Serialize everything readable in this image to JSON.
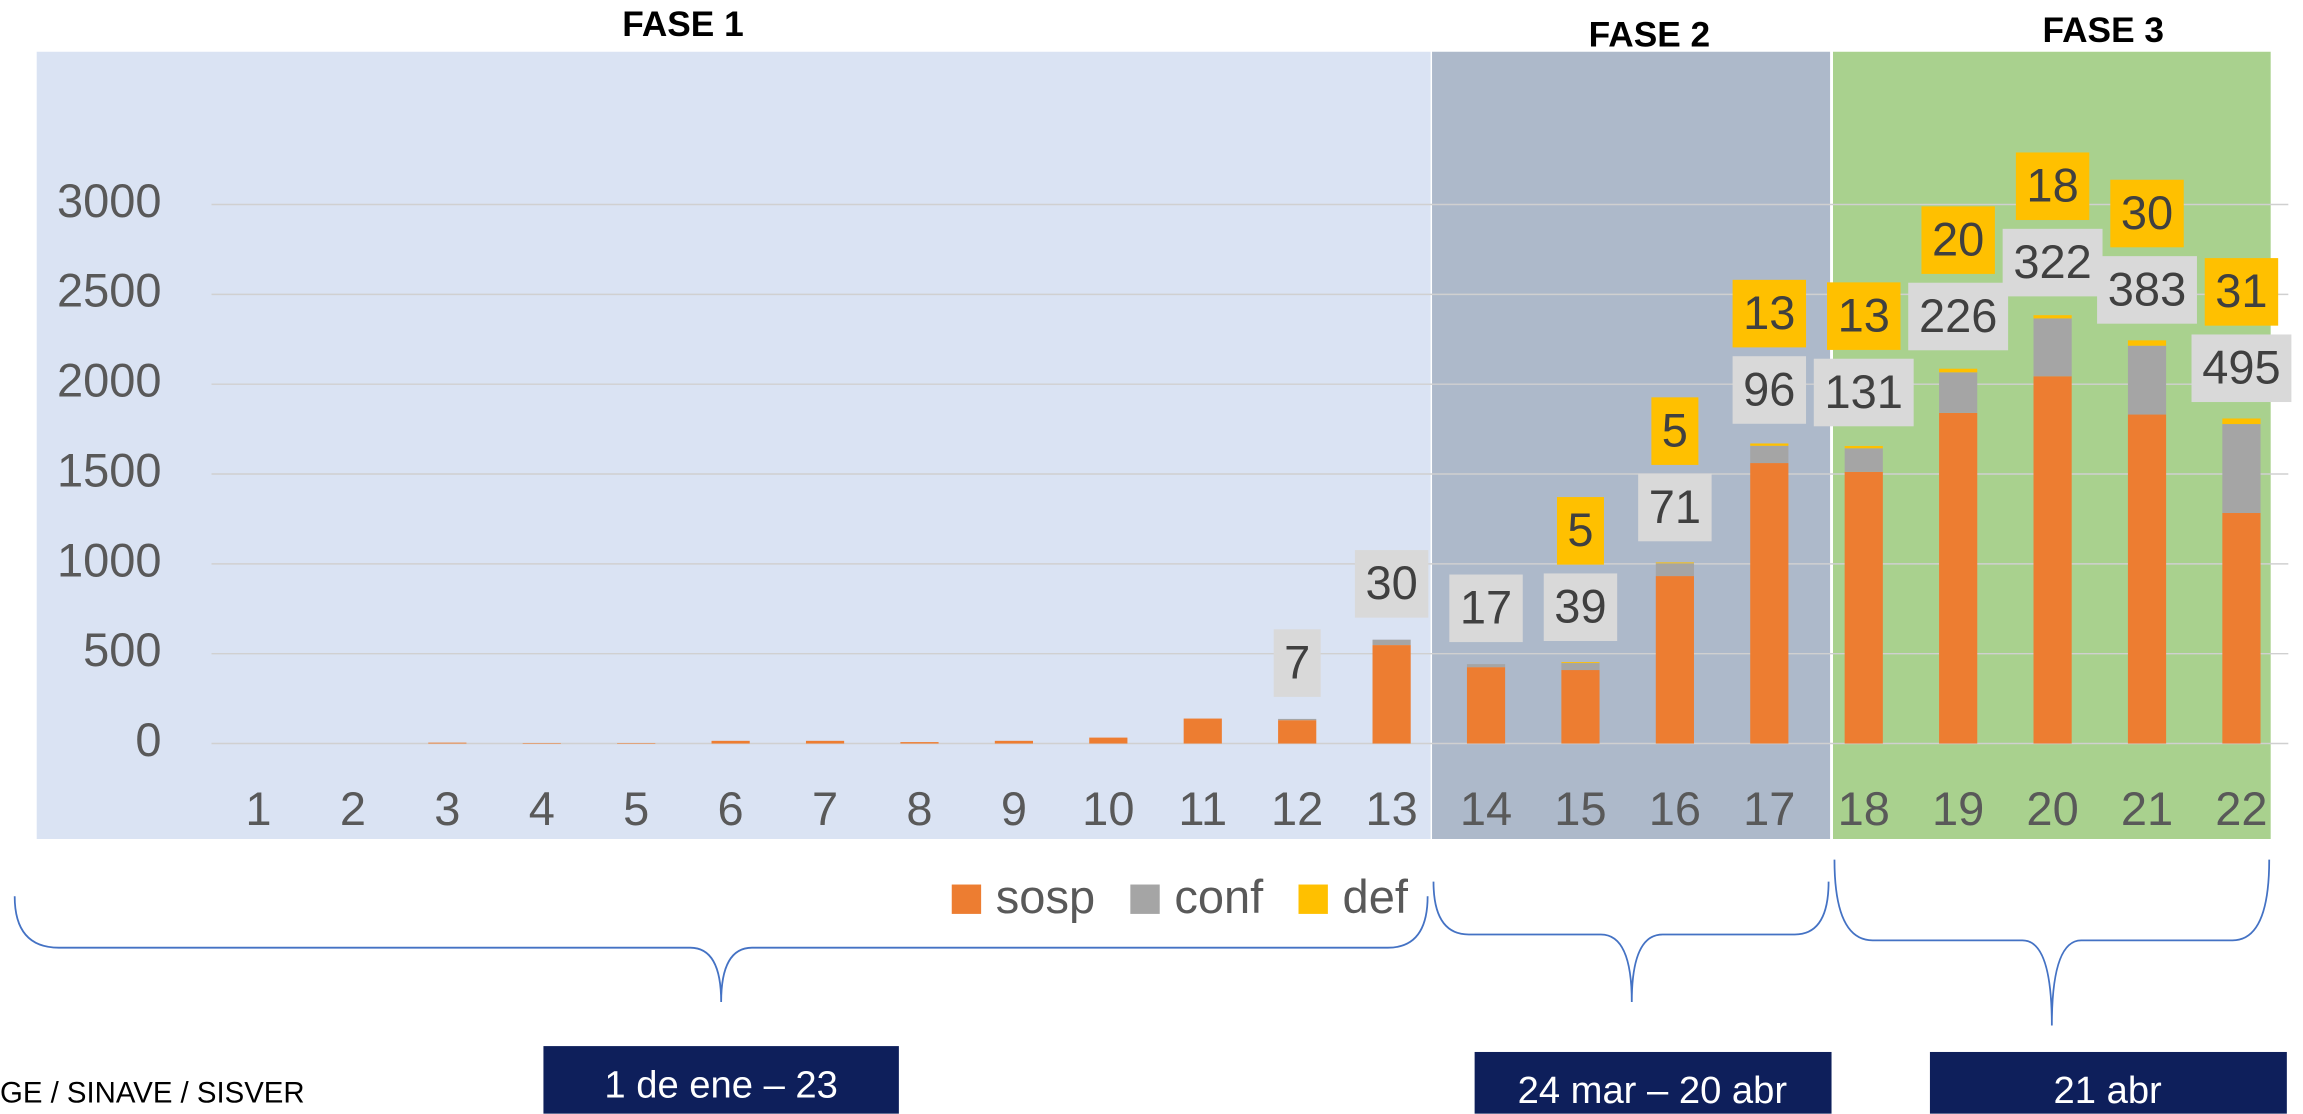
{
  "chart_data": {
    "type": "bar",
    "stacked": true,
    "categories": [
      "1",
      "2",
      "3",
      "4",
      "5",
      "6",
      "7",
      "8",
      "9",
      "10",
      "11",
      "12",
      "13",
      "14",
      "15",
      "16",
      "17",
      "18",
      "19",
      "20",
      "21",
      "22"
    ],
    "series": [
      {
        "name": "sosp",
        "color": "#ed7d31",
        "values": [
          0,
          0,
          5,
          3,
          3,
          15,
          15,
          8,
          15,
          33,
          139,
          130,
          548,
          425,
          409,
          932,
          1561,
          1512,
          1840,
          2044,
          1831,
          1283
        ]
      },
      {
        "name": "conf",
        "color": "#a5a5a5",
        "values": [
          null,
          null,
          null,
          null,
          null,
          null,
          null,
          null,
          null,
          null,
          null,
          7,
          30,
          17,
          39,
          71,
          96,
          131,
          226,
          322,
          383,
          495
        ]
      },
      {
        "name": "def",
        "color": "#ffc000",
        "values": [
          null,
          null,
          null,
          null,
          null,
          null,
          null,
          null,
          null,
          null,
          null,
          null,
          null,
          null,
          5,
          5,
          13,
          13,
          20,
          18,
          30,
          31
        ]
      }
    ],
    "ylim": [
      0,
      3000
    ],
    "yticks": [
      0,
      500,
      1000,
      1500,
      2000,
      2500,
      3000
    ],
    "grid": true,
    "legend": "bottom",
    "phases": [
      {
        "name": "FASE 1",
        "dates": "1 de ene – 23"
      },
      {
        "name": "FASE 2",
        "dates": "24 mar – 20 abr"
      },
      {
        "name": "FASE 3",
        "dates": "21 abr"
      }
    ],
    "source": "GE / SINAVE / SISVER"
  }
}
